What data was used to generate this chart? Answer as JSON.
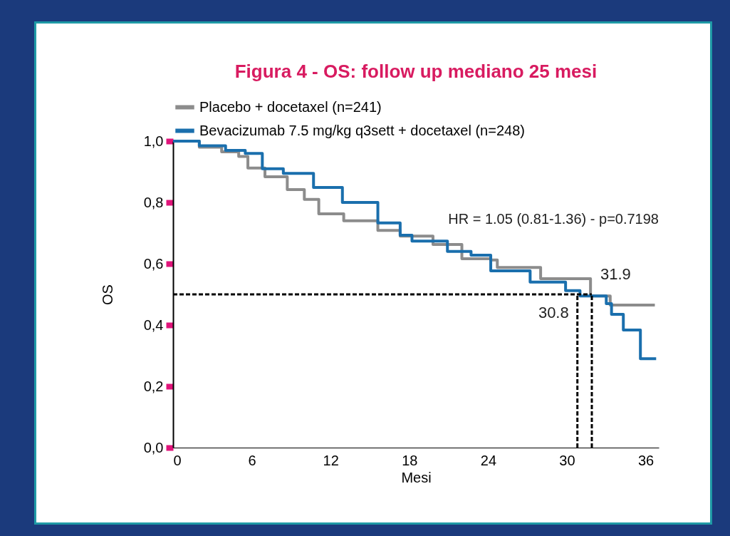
{
  "chart_data": {
    "type": "step",
    "title": "Figura 4 - OS: follow up mediano 25 mesi",
    "xlabel": "Mesi",
    "ylabel": "OS",
    "xlim": [
      0,
      37
    ],
    "xticks": [
      0,
      6,
      12,
      18,
      24,
      30,
      36
    ],
    "ylim": [
      0,
      1
    ],
    "yticks": [
      {
        "value": 0,
        "label": "0,0"
      },
      {
        "value": 0.2,
        "label": "0,2"
      },
      {
        "value": 0.4,
        "label": "0,4"
      },
      {
        "value": 0.6,
        "label": "0,6"
      },
      {
        "value": 0.8,
        "label": "0,8"
      },
      {
        "value": 1,
        "label": "1,0"
      }
    ],
    "grid": false,
    "legend": "top",
    "marker": "none",
    "line_style": "solid",
    "series": [
      {
        "name": "Placebo + docetaxel (n=241)",
        "color": "#8c8c8c",
        "x": [
          0,
          2,
          3.7,
          5,
          5.7,
          7,
          8.7,
          10,
          11.1,
          13,
          15.6,
          17.3,
          19.8,
          22,
          24.2,
          24.7,
          26.3,
          28,
          31.4,
          31.8,
          33.3,
          36.7
        ],
        "values": [
          1,
          0.98,
          0.965,
          0.95,
          0.912,
          0.884,
          0.842,
          0.81,
          0.763,
          0.74,
          0.709,
          0.69,
          0.663,
          0.616,
          0.612,
          0.588,
          0.588,
          0.551,
          0.551,
          0.495,
          0.465,
          0.465
        ]
      },
      {
        "name": "Bevacizumab 7.5 mg/kg q3sett + docetaxel (n=248)",
        "color": "#1a6fad",
        "x": [
          0,
          2,
          4,
          5.5,
          6.8,
          8.4,
          10.7,
          12.9,
          15.6,
          17.3,
          18.2,
          20.9,
          22.7,
          24.2,
          27.2,
          29.9,
          31,
          33,
          33.4,
          34.3,
          35.6,
          36.8
        ],
        "values": [
          1,
          0.985,
          0.97,
          0.96,
          0.91,
          0.895,
          0.849,
          0.8,
          0.733,
          0.693,
          0.674,
          0.64,
          0.628,
          0.577,
          0.54,
          0.512,
          0.495,
          0.47,
          0.435,
          0.384,
          0.29,
          0.29
        ]
      }
    ],
    "ref_lines": [
      {
        "axis": "y",
        "value": 0.5,
        "line_style": "dashed"
      },
      {
        "axis": "x",
        "value": 30.8,
        "label": "30.8",
        "line_style": "dashed"
      },
      {
        "axis": "x",
        "value": 31.9,
        "label": "31.9",
        "line_style": "dashed"
      }
    ],
    "annotations": [
      "HR = 1.05 (0.81-1.36) - p=0.7198"
    ]
  }
}
